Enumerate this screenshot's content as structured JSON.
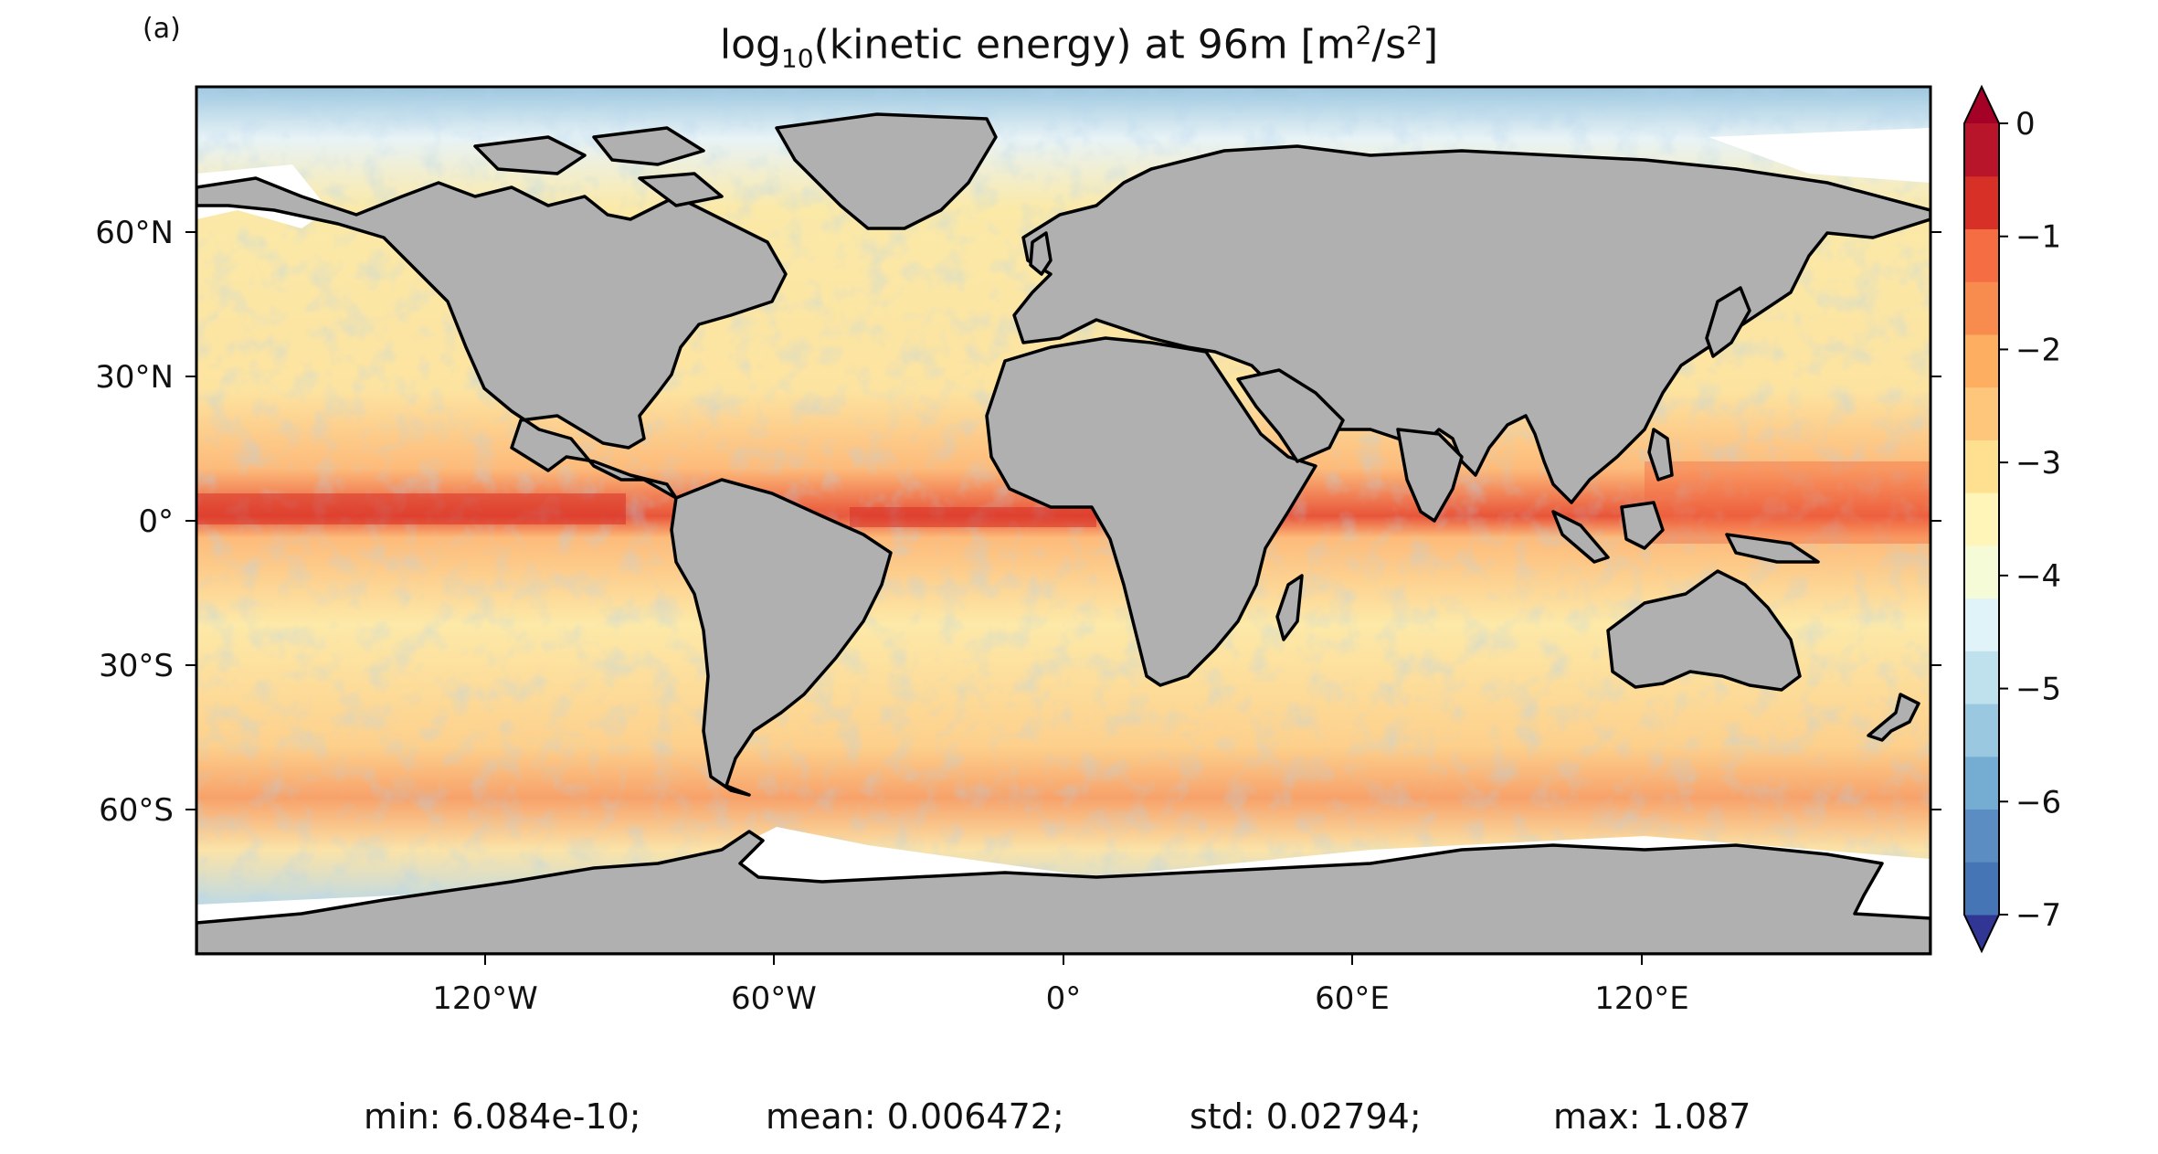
{
  "panel_label": "(a)",
  "title": {
    "prefix": "log",
    "sub": "10",
    "mid": "(kinetic energy) at 96m [m",
    "sup1": "2",
    "mid2": "/s",
    "sup2": "2",
    "suffix": "]"
  },
  "map": {
    "projection": "Plate Carree",
    "ocean_field": "log10 kinetic energy",
    "land_color": "#b0b0b0",
    "coastline_color": "#000000",
    "x_ticks": [
      "120°W",
      "60°W",
      "0°",
      "60°E",
      "120°E"
    ],
    "y_ticks": [
      "60°N",
      "30°N",
      "0°",
      "30°S",
      "60°S"
    ]
  },
  "colorbar": {
    "ticks": [
      "0",
      "−1",
      "−2",
      "−3",
      "−4",
      "−5",
      "−6",
      "−7"
    ],
    "range": [
      -7,
      0
    ],
    "extend": "both",
    "colors": [
      "#313695",
      "#4575b4",
      "#5b8cc2",
      "#74add1",
      "#9ac8e0",
      "#bfe0ed",
      "#e0f3f8",
      "#f5fbd6",
      "#fff5b8",
      "#fee090",
      "#fdc67a",
      "#fdae61",
      "#f88c4f",
      "#f46d43",
      "#d73027",
      "#b8152b",
      "#a50026"
    ]
  },
  "stats": {
    "min": "min: 6.084e-10;",
    "mean": "mean: 0.006472;",
    "std": "std: 0.02794;",
    "max": "max: 1.087"
  }
}
